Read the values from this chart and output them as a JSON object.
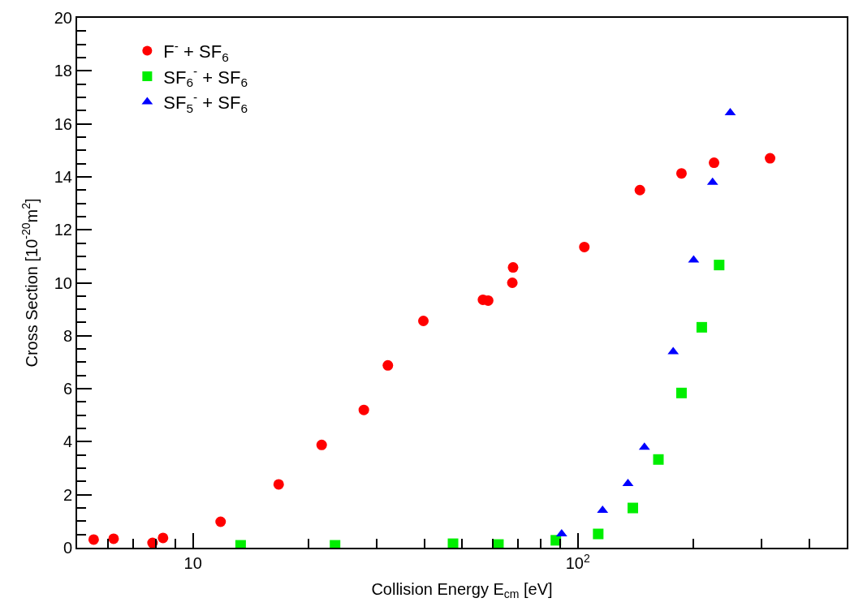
{
  "chart_data": {
    "type": "scatter",
    "xlabel": "Collision Energy E$_{cm}$ [eV]",
    "ylabel": "Cross Section [10$^{-20}$m$^{2}$]",
    "log": "x",
    "xlim": [
      5,
      500
    ],
    "xticks": [
      10,
      {
        "value": 100,
        "label": "10$^{2}$"
      }
    ],
    "ylim": [
      0,
      20
    ],
    "yticks": [
      0,
      2,
      4,
      6,
      8,
      10,
      12,
      14,
      16,
      18,
      20
    ],
    "legend": "top left",
    "series": [
      {
        "name": "F$^{-}$ + SF$_{6}$",
        "color": "#ff0000",
        "marker": "circle",
        "x": [
          5.52,
          6.22,
          7.85,
          8.36,
          11.8,
          16.7,
          21.6,
          27.8,
          32.1,
          39.7,
          56.7,
          58.5,
          67.6,
          67.9,
          104,
          145,
          186,
          226,
          316
        ],
        "values": [
          0.31,
          0.34,
          0.18,
          0.37,
          0.98,
          2.39,
          3.88,
          5.2,
          6.88,
          8.56,
          9.36,
          9.33,
          10.0,
          10.58,
          11.35,
          13.5,
          14.13,
          14.53,
          14.7
        ]
      },
      {
        "name": "SF$_{6}$$^{-}$ + SF$_{6}$",
        "color": "#00ee00",
        "marker": "square",
        "x": [
          13.3,
          23.4,
          47.4,
          62.2,
          87.7,
          113,
          139,
          162,
          186,
          210,
          233
        ],
        "values": [
          0.09,
          0.09,
          0.15,
          0.12,
          0.28,
          0.52,
          1.5,
          3.33,
          5.84,
          8.32,
          10.67
        ]
      },
      {
        "name": "SF$_{5}$$^{-}$ + SF$_{6}$",
        "color": "#0000ff",
        "marker": "triangle",
        "x": [
          90.8,
          116,
          135,
          149,
          177,
          200,
          224,
          249
        ],
        "values": [
          0.52,
          1.41,
          2.42,
          3.79,
          7.4,
          10.86,
          13.79,
          16.42
        ]
      }
    ]
  }
}
